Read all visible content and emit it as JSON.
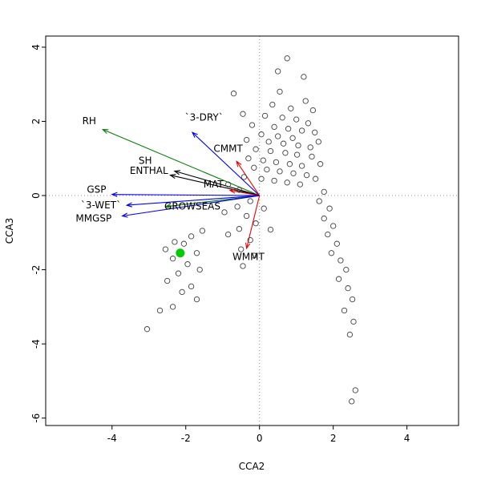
{
  "figure": {
    "background": "#ffffff"
  },
  "chart_data": {
    "type": "scatter",
    "title": "",
    "xlabel": "CCA2",
    "ylabel": "CCA3",
    "xlim": [
      -5.8,
      5.4
    ],
    "ylim": [
      -6.2,
      4.3
    ],
    "x_ticks": [
      -4,
      -2,
      0,
      2,
      4
    ],
    "y_ticks": [
      -6,
      -4,
      -2,
      0,
      2,
      4
    ],
    "grid": false,
    "legend": "none",
    "reference_lines": {
      "x": 0,
      "y": 0,
      "style": "dotted",
      "color": "#8c8c8c"
    },
    "sites": {
      "marker": "open-circle",
      "color": "#404040",
      "points": [
        [
          0.75,
          3.7
        ],
        [
          0.5,
          3.35
        ],
        [
          1.2,
          3.2
        ],
        [
          -0.7,
          2.75
        ],
        [
          0.55,
          2.8
        ],
        [
          1.25,
          2.55
        ],
        [
          0.35,
          2.45
        ],
        [
          0.85,
          2.35
        ],
        [
          1.45,
          2.3
        ],
        [
          -0.45,
          2.2
        ],
        [
          0.15,
          2.15
        ],
        [
          0.62,
          2.1
        ],
        [
          1.0,
          2.05
        ],
        [
          1.32,
          1.95
        ],
        [
          -0.2,
          1.9
        ],
        [
          0.4,
          1.85
        ],
        [
          0.78,
          1.8
        ],
        [
          1.15,
          1.75
        ],
        [
          1.5,
          1.7
        ],
        [
          0.05,
          1.65
        ],
        [
          0.5,
          1.6
        ],
        [
          0.9,
          1.55
        ],
        [
          -0.35,
          1.5
        ],
        [
          0.25,
          1.45
        ],
        [
          0.65,
          1.4
        ],
        [
          1.05,
          1.35
        ],
        [
          1.38,
          1.3
        ],
        [
          -0.1,
          1.25
        ],
        [
          0.3,
          1.2
        ],
        [
          0.7,
          1.15
        ],
        [
          1.02,
          1.1
        ],
        [
          1.42,
          1.05
        ],
        [
          -0.3,
          1.0
        ],
        [
          0.1,
          0.95
        ],
        [
          0.45,
          0.9
        ],
        [
          0.82,
          0.85
        ],
        [
          1.15,
          0.8
        ],
        [
          -0.15,
          0.75
        ],
        [
          0.2,
          0.7
        ],
        [
          0.55,
          0.65
        ],
        [
          0.92,
          0.6
        ],
        [
          1.28,
          0.55
        ],
        [
          -0.42,
          0.5
        ],
        [
          0.05,
          0.45
        ],
        [
          0.4,
          0.4
        ],
        [
          0.75,
          0.35
        ],
        [
          1.1,
          0.3
        ],
        [
          1.52,
          0.45
        ],
        [
          1.65,
          0.85
        ],
        [
          1.6,
          1.45
        ],
        [
          1.75,
          0.1
        ],
        [
          1.62,
          -0.15
        ],
        [
          1.9,
          -0.35
        ],
        [
          1.75,
          -0.62
        ],
        [
          2.0,
          -0.82
        ],
        [
          1.85,
          -1.05
        ],
        [
          2.1,
          -1.3
        ],
        [
          1.95,
          -1.55
        ],
        [
          2.2,
          -1.75
        ],
        [
          2.35,
          -2.0
        ],
        [
          2.15,
          -2.25
        ],
        [
          2.4,
          -2.5
        ],
        [
          2.52,
          -2.8
        ],
        [
          2.3,
          -3.1
        ],
        [
          2.55,
          -3.4
        ],
        [
          2.45,
          -3.75
        ],
        [
          2.6,
          -5.25
        ],
        [
          2.5,
          -5.55
        ],
        [
          -0.55,
          0.15
        ],
        [
          -0.85,
          0.3
        ],
        [
          -0.25,
          -0.15
        ],
        [
          -0.6,
          -0.3
        ],
        [
          -0.95,
          -0.45
        ],
        [
          -0.35,
          -0.55
        ],
        [
          -0.1,
          -0.75
        ],
        [
          -0.55,
          -0.9
        ],
        [
          -0.85,
          -1.05
        ],
        [
          -0.25,
          -1.2
        ],
        [
          -0.5,
          -1.45
        ],
        [
          -0.15,
          -1.62
        ],
        [
          -0.45,
          -1.9
        ],
        [
          0.12,
          -0.35
        ],
        [
          0.3,
          -0.92
        ],
        [
          -1.55,
          -0.95
        ],
        [
          -1.85,
          -1.1
        ],
        [
          -2.3,
          -1.25
        ],
        [
          -2.55,
          -1.45
        ],
        [
          -2.05,
          -1.3
        ],
        [
          -1.7,
          -1.55
        ],
        [
          -2.35,
          -1.7
        ],
        [
          -1.95,
          -1.85
        ],
        [
          -1.62,
          -2.0
        ],
        [
          -2.2,
          -2.1
        ],
        [
          -2.5,
          -2.3
        ],
        [
          -1.85,
          -2.45
        ],
        [
          -2.1,
          -2.6
        ],
        [
          -1.7,
          -2.8
        ],
        [
          -2.35,
          -3.0
        ],
        [
          -2.7,
          -3.1
        ],
        [
          -3.05,
          -3.6
        ]
      ]
    },
    "highlight_site": {
      "marker": "filled-circle",
      "color": "#00cc00",
      "x": -2.15,
      "y": -1.55
    },
    "vectors": [
      {
        "label": "RH",
        "color": "#0a7d0a",
        "tip": [
          -4.25,
          1.78
        ],
        "label_pos": [
          -4.62,
          1.92
        ]
      },
      {
        "label": "`3-DRY`",
        "color": "#0000ee",
        "tip": [
          -1.82,
          1.7
        ],
        "label_pos": [
          -1.5,
          2.02
        ]
      },
      {
        "label": "CMMT",
        "color": "#ee0000",
        "tip": [
          -0.62,
          0.92
        ],
        "label_pos": [
          -0.85,
          1.18
        ]
      },
      {
        "label": "SH",
        "color": "#000000",
        "tip": [
          -2.3,
          0.66
        ],
        "label_pos": [
          -3.1,
          0.85
        ]
      },
      {
        "label": "ENTHAL",
        "color": "#000000",
        "tip": [
          -2.42,
          0.55
        ],
        "label_pos": [
          -3.0,
          0.58
        ]
      },
      {
        "label": "MAT",
        "color": "#ee0000",
        "tip": [
          -0.8,
          0.14
        ],
        "label_pos": [
          -1.25,
          0.22
        ]
      },
      {
        "label": "GSP",
        "color": "#0000ee",
        "tip": [
          -4.0,
          0.03
        ],
        "label_pos": [
          -4.42,
          0.08
        ]
      },
      {
        "label": "`3-WET`",
        "color": "#0000ee",
        "tip": [
          -3.6,
          -0.26
        ],
        "label_pos": [
          -4.3,
          -0.34
        ]
      },
      {
        "label": "GROWSEAS",
        "color": "#0a7d0a",
        "tip": [
          -2.55,
          -0.3
        ],
        "label_pos": [
          -1.82,
          -0.38
        ]
      },
      {
        "label": "MMGSP",
        "color": "#0000ee",
        "tip": [
          -3.72,
          -0.55
        ],
        "label_pos": [
          -4.5,
          -0.7
        ]
      },
      {
        "label": "WMMT",
        "color": "#ee0000",
        "tip": [
          -0.35,
          -1.42
        ],
        "label_pos": [
          -0.3,
          -1.74
        ]
      }
    ]
  }
}
